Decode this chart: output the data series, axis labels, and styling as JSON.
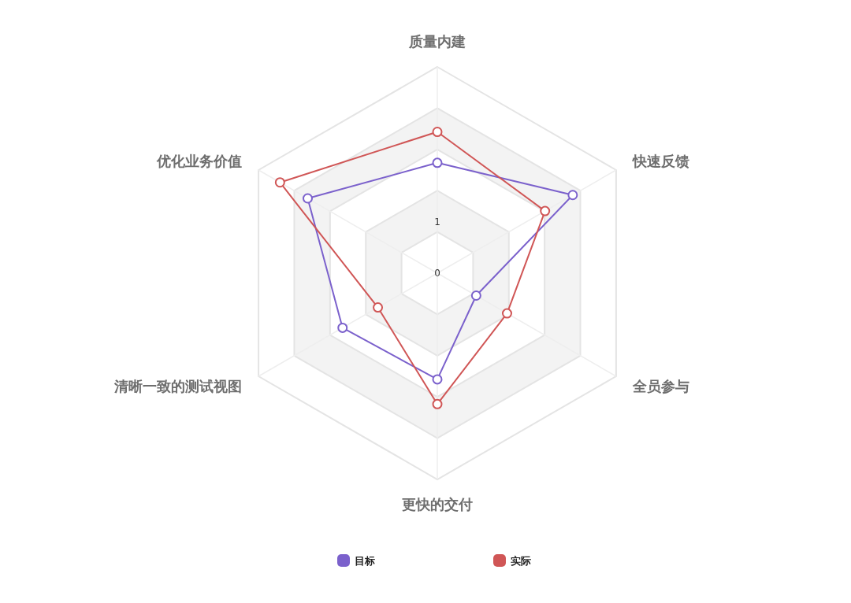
{
  "chart_data": {
    "type": "radar",
    "categories": [
      "质量内建",
      "快速反馈",
      "全员参与",
      "更快的交付",
      "清晰一致的测试视图",
      "优化业务价值"
    ],
    "series": [
      {
        "name": "目标",
        "color": "#7b61cc",
        "values": [
          2.14,
          3.03,
          0.87,
          2.06,
          2.12,
          2.9
        ]
      },
      {
        "name": "实际",
        "color": "#d05656",
        "values": [
          2.74,
          2.41,
          1.56,
          2.54,
          1.33,
          3.52
        ]
      }
    ],
    "ylim": [
      0,
      4
    ],
    "yticks": [
      0,
      1
    ],
    "grid": true,
    "legend": "bottom",
    "marker": "circle"
  }
}
